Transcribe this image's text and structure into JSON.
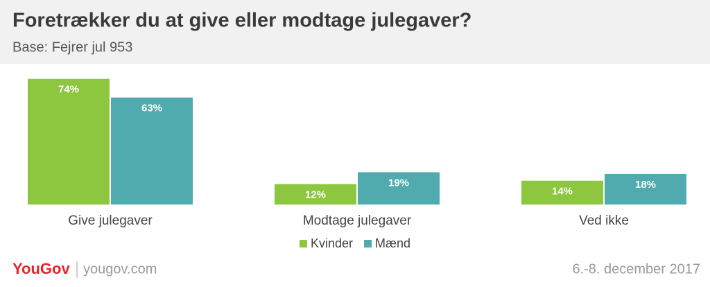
{
  "chart_data": {
    "type": "bar",
    "title": "Foretrækker du at give eller modtage julegaver?",
    "subtitle": "Base: Fejrer jul 953",
    "categories": [
      "Give julegaver",
      "Modtage julegaver",
      "Ved ikke"
    ],
    "series": [
      {
        "name": "Kvinder",
        "color": "#8dc63f",
        "values": [
          74,
          12,
          14
        ],
        "value_labels": [
          "74%",
          "12%",
          "14%"
        ]
      },
      {
        "name": "Mænd",
        "color": "#4fabad",
        "values": [
          63,
          19,
          18
        ],
        "value_labels": [
          "63%",
          "19%",
          "18%"
        ]
      }
    ],
    "legend": "bottom",
    "brand": "YouGov",
    "website": "yougov.com",
    "date": "6.-8. december 2017"
  }
}
